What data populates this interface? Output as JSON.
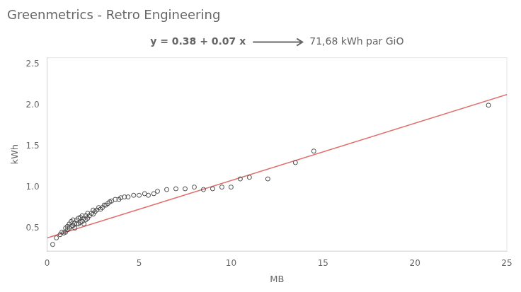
{
  "chart_data": {
    "type": "scatter",
    "title": "Greenmetrics - Retro Engineering",
    "annotations": [
      {
        "text": "y = 0.38 + 0.07 x"
      },
      {
        "text": "71,68 kWh par GiO",
        "arrow": true
      }
    ],
    "x_label": "MB",
    "y_label": "kWh",
    "xlim": [
      0,
      25
    ],
    "ylim": [
      0.22,
      2.58
    ],
    "xticks": [
      0,
      5,
      10,
      15,
      20,
      25
    ],
    "yticks": [
      0.5,
      {
        "value": 1.0,
        "label": "1.0"
      },
      1.5,
      {
        "value": 2.0,
        "label": "2.0"
      },
      2.5
    ],
    "grid": false,
    "series": [
      {
        "type": "scatter",
        "marker": "circle",
        "color": "#444444",
        "x": [
          0.3,
          0.5,
          0.7,
          0.8,
          0.9,
          1.0,
          1.0,
          1.1,
          1.1,
          1.2,
          1.2,
          1.3,
          1.3,
          1.4,
          1.4,
          1.5,
          1.5,
          1.6,
          1.6,
          1.7,
          1.7,
          1.8,
          1.8,
          1.9,
          1.9,
          2.0,
          2.0,
          2.1,
          2.1,
          2.2,
          2.2,
          2.3,
          2.4,
          2.5,
          2.5,
          2.6,
          2.7,
          2.8,
          2.9,
          3.0,
          3.1,
          3.2,
          3.3,
          3.4,
          3.5,
          3.7,
          3.9,
          4.0,
          4.2,
          4.4,
          4.7,
          5.0,
          5.3,
          5.5,
          5.8,
          6.0,
          6.5,
          7.0,
          7.5,
          8.0,
          8.5,
          9.0,
          9.5,
          10.0,
          10.5,
          11.0,
          12.0,
          13.5,
          14.5,
          24.0
        ],
        "values": [
          0.3,
          0.38,
          0.42,
          0.45,
          0.44,
          0.45,
          0.5,
          0.48,
          0.52,
          0.5,
          0.55,
          0.52,
          0.58,
          0.53,
          0.6,
          0.5,
          0.56,
          0.55,
          0.6,
          0.55,
          0.62,
          0.57,
          0.63,
          0.58,
          0.65,
          0.55,
          0.62,
          0.6,
          0.65,
          0.62,
          0.68,
          0.65,
          0.68,
          0.67,
          0.72,
          0.7,
          0.72,
          0.75,
          0.73,
          0.75,
          0.78,
          0.78,
          0.8,
          0.82,
          0.83,
          0.85,
          0.85,
          0.87,
          0.88,
          0.88,
          0.9,
          0.9,
          0.92,
          0.9,
          0.92,
          0.95,
          0.97,
          0.98,
          0.98,
          1.0,
          0.97,
          0.98,
          1.0,
          1.0,
          1.1,
          1.12,
          1.1,
          1.3,
          1.44,
          2.0
        ]
      },
      {
        "type": "line",
        "line_style": "solid",
        "color": "#e07070",
        "x": [
          0,
          25
        ],
        "values": [
          0.38,
          2.13
        ]
      }
    ]
  }
}
